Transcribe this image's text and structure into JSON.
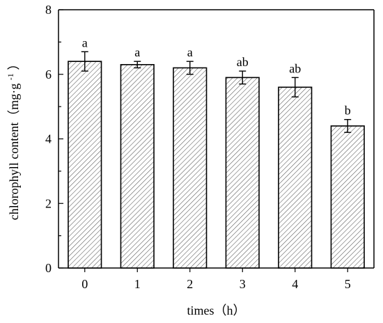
{
  "chart_data": {
    "type": "bar",
    "title": "",
    "xlabel": "times（h）",
    "ylabel": "chlorophyll content（mg·g",
    "ylabel_sup": "-1",
    "ylabel_close": "）",
    "categories": [
      "0",
      "1",
      "2",
      "3",
      "4",
      "5"
    ],
    "values": [
      6.4,
      6.3,
      6.2,
      5.9,
      5.6,
      4.4
    ],
    "errors": [
      0.3,
      0.1,
      0.2,
      0.2,
      0.3,
      0.2
    ],
    "significance": [
      "a",
      "a",
      "a",
      "ab",
      "ab",
      "b"
    ],
    "ylim": [
      0,
      8
    ],
    "yticks": [
      "0",
      "2",
      "4",
      "6",
      "8"
    ],
    "bar_fill": "hatched",
    "bar_color": "#ffffff",
    "hatch_color": "#555555",
    "grid": false,
    "legend": "none"
  }
}
